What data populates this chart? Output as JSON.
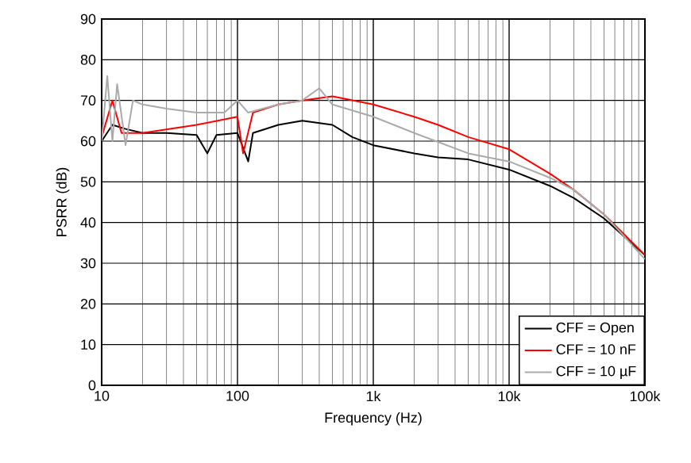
{
  "chart_data": {
    "type": "line",
    "xlabel": "Frequency (Hz)",
    "ylabel": "PSRR (dB)",
    "log": "x",
    "grid": true,
    "legend": "bottom right",
    "line_style": "solid",
    "xlim": [
      10,
      100000
    ],
    "ylim": [
      0,
      90
    ],
    "xticks": [
      {
        "value": 10,
        "label": "10"
      },
      {
        "value": 100,
        "label": "100"
      },
      {
        "value": 1000,
        "label": "1k"
      },
      {
        "value": 10000,
        "label": "10k"
      },
      {
        "value": 100000,
        "label": "100k"
      }
    ],
    "yticks": [
      0,
      10,
      20,
      30,
      40,
      50,
      60,
      70,
      80,
      90
    ],
    "series": [
      {
        "name": "CFF = Open",
        "color": "#000000",
        "x": [
          10,
          12,
          15,
          20,
          30,
          50,
          60,
          70,
          100,
          120,
          130,
          200,
          300,
          500,
          700,
          1000,
          2000,
          3000,
          5000,
          10000,
          20000,
          30000,
          50000,
          100000
        ],
        "values": [
          60,
          64,
          63,
          62,
          62,
          61.5,
          57,
          61.5,
          62,
          55,
          62,
          64,
          65,
          64,
          61,
          59,
          57,
          56,
          55.5,
          53,
          49,
          46,
          41,
          32
        ]
      },
      {
        "name": "CFF = 10 nF",
        "color": "#ff0000",
        "x": [
          10,
          12,
          14,
          20,
          50,
          100,
          110,
          130,
          200,
          300,
          500,
          1000,
          2000,
          3000,
          5000,
          10000,
          20000,
          30000,
          50000,
          100000
        ],
        "values": [
          61,
          70,
          62,
          62,
          64,
          66,
          57,
          67,
          69,
          70,
          71,
          69,
          66,
          64,
          61,
          58,
          52,
          48,
          42,
          32
        ]
      },
      {
        "name": "CFF = 10 µF",
        "color": "#aaaaaa",
        "x": [
          10,
          11,
          12,
          13,
          15,
          17,
          20,
          30,
          50,
          80,
          100,
          120,
          200,
          300,
          400,
          500,
          1000,
          2000,
          5000,
          10000,
          20000,
          30000,
          50000,
          100000
        ],
        "values": [
          60,
          76,
          60,
          74,
          59,
          70,
          69,
          68,
          67,
          67,
          70,
          67,
          69,
          70,
          73,
          69,
          66,
          62,
          57,
          55,
          51,
          48,
          42,
          31
        ]
      }
    ]
  }
}
